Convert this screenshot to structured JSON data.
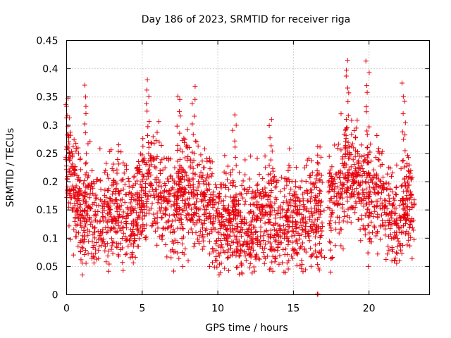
{
  "chart_data": {
    "type": "scatter",
    "title": "Day 186 of 2023, SRMTID for receiver riga",
    "xlabel": "GPS time / hours",
    "ylabel": "SRMTID / TECUs",
    "xlim": [
      0,
      24
    ],
    "ylim": [
      0,
      0.45
    ],
    "x_ticks": [
      0,
      5,
      10,
      15,
      20
    ],
    "x_tick_labels": [
      "0",
      "5",
      "10",
      "15",
      "20"
    ],
    "y_ticks": [
      0,
      0.05,
      0.1,
      0.15,
      0.2,
      0.25,
      0.3,
      0.35,
      0.4,
      0.45
    ],
    "y_tick_labels": [
      "0",
      "0.05",
      "0.1",
      "0.15",
      "0.2",
      "0.25",
      "0.3",
      "0.35",
      "0.4",
      "0.45"
    ],
    "grid": true,
    "marker": "+",
    "marker_color": "#e8000b",
    "x_range_of_data": [
      0,
      23
    ],
    "data_gap": [
      16.9,
      17.3
    ],
    "outlier_at_zero": [
      16.6,
      0.0
    ],
    "trend": [
      [
        0,
        0.22
      ],
      [
        0.5,
        0.19
      ],
      [
        1,
        0.14
      ],
      [
        1.5,
        0.15
      ],
      [
        2,
        0.13
      ],
      [
        2.5,
        0.14
      ],
      [
        3,
        0.16
      ],
      [
        3.5,
        0.15
      ],
      [
        4,
        0.14
      ],
      [
        4.5,
        0.13
      ],
      [
        5,
        0.19
      ],
      [
        5.5,
        0.2
      ],
      [
        6,
        0.18
      ],
      [
        6.5,
        0.17
      ],
      [
        7,
        0.15
      ],
      [
        7.5,
        0.17
      ],
      [
        8,
        0.18
      ],
      [
        8.5,
        0.16
      ],
      [
        9,
        0.17
      ],
      [
        9.5,
        0.16
      ],
      [
        10,
        0.13
      ],
      [
        10.5,
        0.14
      ],
      [
        11,
        0.14
      ],
      [
        11.5,
        0.12
      ],
      [
        12,
        0.12
      ],
      [
        12.5,
        0.13
      ],
      [
        13,
        0.15
      ],
      [
        13.5,
        0.13
      ],
      [
        14,
        0.12
      ],
      [
        14.5,
        0.13
      ],
      [
        15,
        0.14
      ],
      [
        15.5,
        0.14
      ],
      [
        16,
        0.15
      ],
      [
        16.5,
        0.13
      ],
      [
        16.9,
        0.14
      ],
      [
        17.3,
        0.15
      ],
      [
        17.5,
        0.17
      ],
      [
        18,
        0.2
      ],
      [
        18.5,
        0.21
      ],
      [
        19,
        0.22
      ],
      [
        19.5,
        0.19
      ],
      [
        20,
        0.17
      ],
      [
        20.5,
        0.19
      ],
      [
        21,
        0.15
      ],
      [
        21.5,
        0.13
      ],
      [
        22,
        0.14
      ],
      [
        22.5,
        0.17
      ],
      [
        23,
        0.16
      ]
    ],
    "peaks": [
      [
        0.05,
        0.35
      ],
      [
        1.3,
        0.37
      ],
      [
        5.4,
        0.38
      ],
      [
        7.4,
        0.355
      ],
      [
        8.4,
        0.365
      ],
      [
        11.1,
        0.315
      ],
      [
        13.5,
        0.31
      ],
      [
        18.6,
        0.415
      ],
      [
        19.9,
        0.41
      ],
      [
        22.3,
        0.37
      ]
    ],
    "lows": [
      [
        1.0,
        0.035
      ],
      [
        7.7,
        0.05
      ],
      [
        9.5,
        0.05
      ],
      [
        12.2,
        0.055
      ],
      [
        17.5,
        0.04
      ],
      [
        20.0,
        0.05
      ]
    ]
  }
}
